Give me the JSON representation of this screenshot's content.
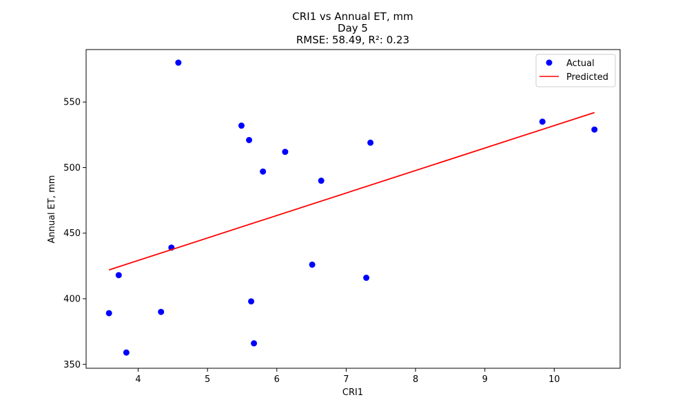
{
  "chart_data": {
    "type": "scatter",
    "title_lines": [
      "CRI1 vs Annual ET, mm",
      "Day 5",
      "RMSE: 58.49, R²: 0.23"
    ],
    "xlabel": "CRI1",
    "ylabel": "Annual ET, mm",
    "xlim": [
      3.25,
      10.95
    ],
    "ylim": [
      347,
      590
    ],
    "x_ticks": [
      4,
      5,
      6,
      7,
      8,
      9,
      10
    ],
    "y_ticks": [
      350,
      400,
      450,
      500,
      550
    ],
    "grid": false,
    "legend_position": "top-right",
    "series": [
      {
        "name": "Actual",
        "kind": "scatter",
        "color": "#0000ff",
        "points": [
          {
            "x": 4.58,
            "y": 580
          },
          {
            "x": 5.49,
            "y": 532
          },
          {
            "x": 5.6,
            "y": 521
          },
          {
            "x": 6.12,
            "y": 512
          },
          {
            "x": 5.8,
            "y": 497
          },
          {
            "x": 7.35,
            "y": 519
          },
          {
            "x": 6.64,
            "y": 490
          },
          {
            "x": 9.83,
            "y": 535
          },
          {
            "x": 10.58,
            "y": 529
          },
          {
            "x": 4.48,
            "y": 439
          },
          {
            "x": 3.72,
            "y": 418
          },
          {
            "x": 6.51,
            "y": 426
          },
          {
            "x": 7.29,
            "y": 416
          },
          {
            "x": 3.58,
            "y": 389
          },
          {
            "x": 4.33,
            "y": 390
          },
          {
            "x": 5.63,
            "y": 398
          },
          {
            "x": 5.67,
            "y": 366
          },
          {
            "x": 3.83,
            "y": 359
          }
        ]
      },
      {
        "name": "Predicted",
        "kind": "line",
        "color": "#ff0000",
        "points": [
          {
            "x": 3.58,
            "y": 422
          },
          {
            "x": 10.58,
            "y": 542
          }
        ]
      }
    ]
  }
}
